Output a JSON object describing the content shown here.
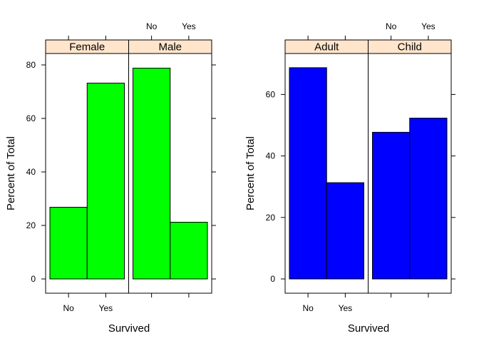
{
  "chart_data": [
    {
      "type": "bar",
      "xlabel": "Survived",
      "ylabel": "Percent of Total",
      "categories": [
        "No",
        "Yes"
      ],
      "ylim": [
        0,
        85
      ],
      "yticks": [
        0,
        20,
        40,
        60,
        80
      ],
      "bar_color": "#00ff00",
      "strip_color": "#ffe5cc",
      "panels": [
        {
          "name": "Female",
          "values": [
            26.8,
            73.2
          ]
        },
        {
          "name": "Male",
          "values": [
            78.8,
            21.2
          ]
        }
      ]
    },
    {
      "type": "bar",
      "xlabel": "Survived",
      "ylabel": "Percent of Total",
      "categories": [
        "No",
        "Yes"
      ],
      "ylim": [
        0,
        74
      ],
      "yticks": [
        0,
        20,
        40,
        60
      ],
      "bar_color": "#0000ff",
      "strip_color": "#ffe5cc",
      "panels": [
        {
          "name": "Adult",
          "values": [
            68.7,
            31.3
          ]
        },
        {
          "name": "Child",
          "values": [
            47.7,
            52.3
          ]
        }
      ]
    }
  ]
}
